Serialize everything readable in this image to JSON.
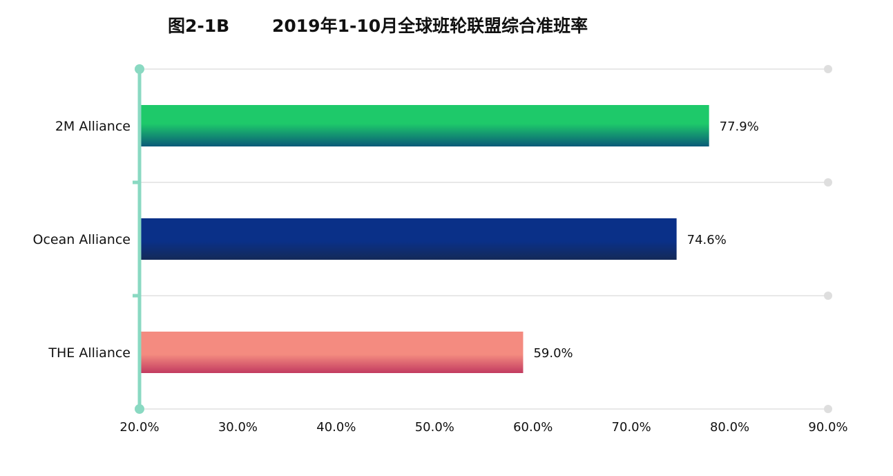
{
  "title": {
    "figure_number": "图2-1B",
    "text": "2019年1-10月全球班轮联盟综合准班率"
  },
  "colors": {
    "axis": "#8ad9c2",
    "grid": "#e8e8e8",
    "grid_end_dot": "#dedede",
    "bar_2m_top": "#1ec96a",
    "bar_2m_bottom": "#0a5a78",
    "bar_ocean_top": "#0a3088",
    "bar_ocean_bottom": "#142a58",
    "bar_the_top": "#f48b80",
    "bar_the_bottom": "#c23a60"
  },
  "chart_data": {
    "type": "bar",
    "orientation": "horizontal",
    "title": "2019年1-10月全球班轮联盟综合准班率",
    "categories": [
      "2M Alliance",
      "Ocean Alliance",
      "THE Alliance"
    ],
    "values": [
      77.9,
      74.6,
      59.0
    ],
    "value_labels": [
      "77.9%",
      "74.6%",
      "59.0%"
    ],
    "xlim": [
      20,
      90
    ],
    "xticks": [
      20,
      30,
      40,
      50,
      60,
      70,
      80,
      90
    ],
    "xtick_labels": [
      "20.0%",
      "30.0%",
      "40.0%",
      "50.0%",
      "60.0%",
      "70.0%",
      "80.0%",
      "90.0%"
    ],
    "xlabel": "",
    "ylabel": "",
    "grid": true,
    "legend": "none"
  }
}
